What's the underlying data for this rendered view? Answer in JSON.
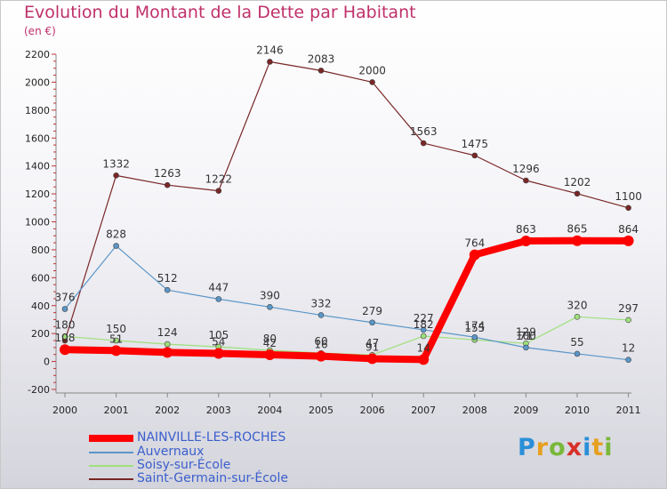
{
  "chart_data": {
    "type": "line",
    "title": "Evolution du Montant de la Dette par Habitant",
    "subtitle": "(en €)",
    "x": [
      "2000",
      "2001",
      "2002",
      "2003",
      "2004",
      "2005",
      "2006",
      "2007",
      "2008",
      "2009",
      "2010",
      "2011"
    ],
    "ylim": [
      -200,
      2200
    ],
    "yticks": [
      -200,
      0,
      200,
      400,
      600,
      800,
      1000,
      1200,
      1400,
      1600,
      1800,
      2000,
      2200
    ],
    "grid": false,
    "legend_position": "bottom-left",
    "series": [
      {
        "name": "NAINVILLE-LES-ROCHES",
        "color": "#ff0000",
        "values": [
          85,
          78,
          65,
          58,
          48,
          38,
          20,
          14,
          764,
          863,
          865,
          864
        ],
        "labels": [
          "",
          "",
          "",
          "",
          "",
          "",
          "",
          "14",
          "764",
          "863",
          "865",
          "864"
        ]
      },
      {
        "name": "Auvernaux",
        "color": "#5a96c8",
        "values": [
          376,
          828,
          512,
          447,
          390,
          332,
          279,
          227,
          174,
          100,
          55,
          12
        ],
        "labels": [
          "376",
          "828",
          "512",
          "447",
          "390",
          "332",
          "279",
          "227",
          "174",
          "100",
          "55",
          "12"
        ]
      },
      {
        "name": "Soisy-sur-École",
        "color": "#9ee07a",
        "values": [
          180,
          150,
          124,
          105,
          80,
          60,
          47,
          182,
          155,
          129,
          320,
          297
        ],
        "labels": [
          "180",
          "150",
          "124",
          "105",
          "80",
          "60",
          "47",
          "182",
          "155",
          "129",
          "320",
          "297"
        ]
      },
      {
        "name": "Saint-Germain-sur-École",
        "color": "#7a2626",
        "values": [
          150,
          1332,
          1263,
          1222,
          2146,
          2083,
          2000,
          1563,
          1475,
          1296,
          1202,
          1100
        ],
        "labels": [
          "",
          "1332",
          "1263",
          "1222",
          "2146",
          "2083",
          "2000",
          "1563",
          "1475",
          "1296",
          "1202",
          "1100"
        ]
      }
    ],
    "extra_labels": [
      "108",
      "51",
      "54",
      "42",
      "16",
      "91",
      "71"
    ]
  },
  "branding": {
    "logo_text": "Proxiti"
  }
}
